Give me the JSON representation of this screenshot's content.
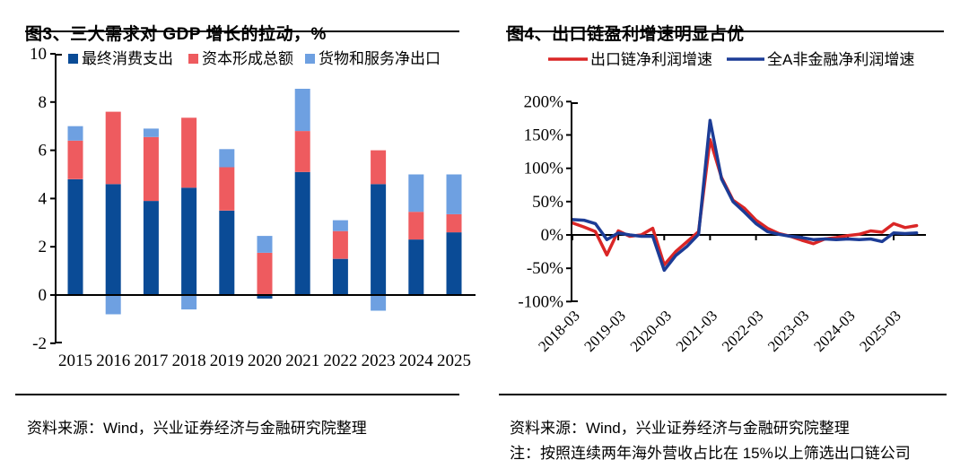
{
  "left_panel": {
    "title": "图3、三大需求对 GDP 增长的拉动，%",
    "source": "资料来源：Wind，兴业证券经济与金融研究院整理"
  },
  "right_panel": {
    "title": "图4、出口链盈利增速明显占优",
    "source": "资料来源：Wind，兴业证券经济与金融研究院整理",
    "note": "注：按照连续两年海外营收占比在 15%以上筛选出口链公司"
  },
  "chart_data": [
    {
      "id": "gdp-demand-contribution",
      "type": "bar",
      "stacked": true,
      "title": "图3、三大需求对 GDP 增长的拉动，%",
      "categories": [
        "2015",
        "2016",
        "2017",
        "2018",
        "2019",
        "2020",
        "2021",
        "2022",
        "2023",
        "2024",
        "2025"
      ],
      "series": [
        {
          "name": "最终消费支出",
          "color": "#0A4B96",
          "values": [
            4.8,
            4.6,
            3.9,
            4.45,
            3.5,
            -0.15,
            5.1,
            1.5,
            4.6,
            2.3,
            2.6
          ]
        },
        {
          "name": "资本形成总额",
          "color": "#EE5B5F",
          "values": [
            1.6,
            3.0,
            2.65,
            2.9,
            1.8,
            1.75,
            1.7,
            1.15,
            1.4,
            1.15,
            0.75
          ]
        },
        {
          "name": "货物和服务净出口",
          "color": "#6EA0E1",
          "values": [
            0.6,
            -0.8,
            0.35,
            -0.6,
            0.75,
            0.7,
            1.75,
            0.45,
            -0.65,
            1.55,
            1.65
          ]
        }
      ],
      "ylim": [
        -2,
        10
      ],
      "yticks": [
        10,
        8,
        6,
        4,
        2,
        0,
        -2
      ],
      "legend_position": "top",
      "grid": false
    },
    {
      "id": "export-chain-profit-growth",
      "type": "line",
      "title": "图4、出口链盈利增速明显占优",
      "x": [
        "2018-03",
        "2018-06",
        "2018-09",
        "2018-12",
        "2019-03",
        "2019-06",
        "2019-09",
        "2019-12",
        "2020-03",
        "2020-06",
        "2020-09",
        "2020-12",
        "2021-03",
        "2021-06",
        "2021-09",
        "2021-12",
        "2022-03",
        "2022-06",
        "2022-09",
        "2022-12",
        "2023-03",
        "2023-06",
        "2023-09",
        "2023-12",
        "2024-03",
        "2024-06",
        "2024-09",
        "2024-12",
        "2025-03",
        "2025-06",
        "2025-09"
      ],
      "series": [
        {
          "name": "出口链净利润增速",
          "color": "#DA2626",
          "values": [
            18,
            12,
            5,
            -30,
            6,
            -2,
            0,
            10,
            -45,
            -25,
            -10,
            5,
            143,
            86,
            52,
            40,
            22,
            10,
            2,
            -2,
            -8,
            -13,
            -6,
            -4,
            -1,
            1,
            6,
            4,
            17,
            11,
            14
          ]
        },
        {
          "name": "全A非金融净利润增速",
          "color": "#1C3C96",
          "values": [
            23,
            22,
            17,
            -7,
            3,
            0,
            -2,
            -2,
            -53,
            -31,
            -17,
            1,
            172,
            84,
            50,
            34,
            17,
            5,
            1,
            -2,
            -4,
            -7,
            -6,
            -7,
            -6,
            -7,
            -6,
            -10,
            3,
            2,
            3
          ]
        }
      ],
      "unit": "%",
      "ylim": [
        -100,
        200
      ],
      "yticks": [
        "200%",
        "150%",
        "100%",
        "50%",
        "0%",
        "-50%",
        "-100%"
      ],
      "xtick_labels": [
        "2018-03",
        "2019-03",
        "2020-03",
        "2021-03",
        "2022-03",
        "2023-03",
        "2024-03",
        "2025-03"
      ],
      "legend_position": "top",
      "grid": false
    }
  ]
}
